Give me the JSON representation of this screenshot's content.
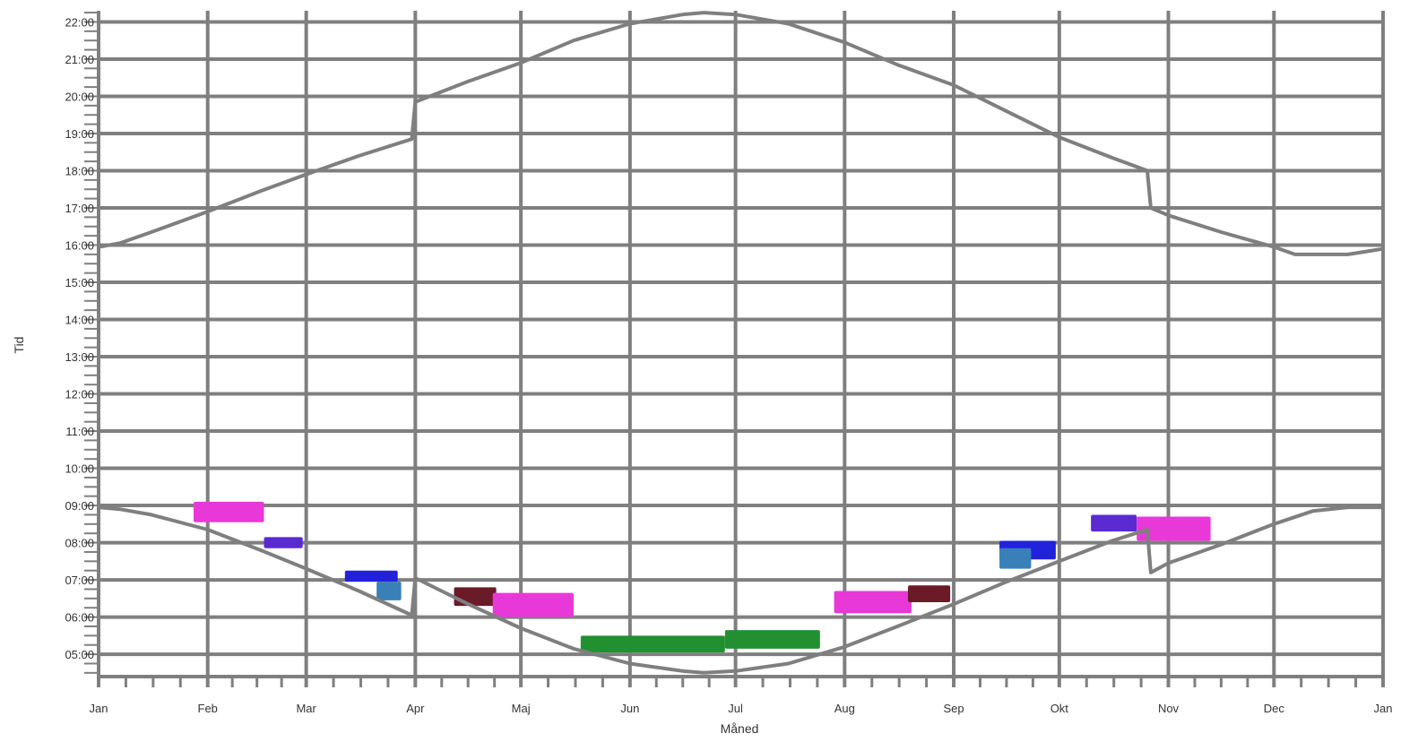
{
  "chart_data": {
    "type": "line",
    "title": "",
    "xlabel": "Måned",
    "ylabel": "Tid",
    "x_tick_labels": [
      "Jan",
      "Feb",
      "Mar",
      "Apr",
      "Maj",
      "Jun",
      "Jul",
      "Aug",
      "Sep",
      "Okt",
      "Nov",
      "Dec",
      "Jan"
    ],
    "y_tick_labels": [
      "05:00",
      "06:00",
      "07:00",
      "08:00",
      "09:00",
      "10:00",
      "11:00",
      "12:00",
      "13:00",
      "14:00",
      "15:00",
      "16:00",
      "17:00",
      "18:00",
      "19:00",
      "20:00",
      "21:00",
      "22:00"
    ],
    "ylim": [
      4.4,
      22.3
    ],
    "xlim": [
      0,
      365
    ],
    "grid": true,
    "colors": {
      "grid": "#7f7f7f",
      "line": "#7f7f7f",
      "axis_text": "#333333"
    },
    "series": [
      {
        "kind": "line",
        "x": [
          0,
          6,
          15,
          31,
          46,
          59,
          74,
          89,
          90,
          105,
          120,
          135,
          151,
          166,
          172,
          181,
          196,
          212,
          227,
          243,
          258,
          273,
          288,
          298,
          299,
          304,
          319,
          334,
          340,
          355,
          365
        ],
        "y": [
          15.95,
          16.05,
          16.35,
          16.9,
          17.45,
          17.9,
          18.4,
          18.85,
          19.85,
          20.4,
          20.9,
          21.5,
          21.95,
          22.2,
          22.25,
          22.2,
          21.95,
          21.45,
          20.85,
          20.3,
          19.6,
          18.9,
          18.35,
          18.0,
          17.0,
          16.8,
          16.35,
          15.95,
          15.75,
          15.75,
          15.9
        ]
      },
      {
        "kind": "line",
        "x": [
          0,
          6,
          15,
          31,
          46,
          59,
          74,
          89,
          90,
          105,
          120,
          135,
          151,
          166,
          172,
          181,
          196,
          212,
          227,
          243,
          258,
          273,
          288,
          298,
          299,
          304,
          319,
          334,
          345,
          355,
          365
        ],
        "y": [
          8.95,
          8.9,
          8.75,
          8.35,
          7.8,
          7.3,
          6.7,
          6.05,
          7.05,
          6.35,
          5.7,
          5.15,
          4.75,
          4.55,
          4.5,
          4.55,
          4.75,
          5.2,
          5.75,
          6.35,
          6.95,
          7.5,
          8.05,
          8.35,
          7.2,
          7.45,
          7.95,
          8.5,
          8.85,
          8.95,
          8.95
        ]
      }
    ],
    "blocks": [
      {
        "color": "#e838d8",
        "x": [
          27,
          47
        ],
        "y": [
          8.55,
          9.1
        ]
      },
      {
        "color": "#5a2bd0",
        "x": [
          47,
          58
        ],
        "y": [
          7.85,
          8.15
        ]
      },
      {
        "color": "#2222dd",
        "x": [
          70,
          85
        ],
        "y": [
          6.95,
          7.25
        ]
      },
      {
        "color": "#3a80b8",
        "x": [
          79,
          86
        ],
        "y": [
          6.45,
          6.95
        ]
      },
      {
        "color": "#6b1a28",
        "x": [
          101,
          113
        ],
        "y": [
          6.3,
          6.8
        ]
      },
      {
        "color": "#e838d8",
        "x": [
          112,
          135
        ],
        "y": [
          6.0,
          6.65
        ]
      },
      {
        "color": "#229030",
        "x": [
          137,
          178
        ],
        "y": [
          5.05,
          5.5
        ]
      },
      {
        "color": "#229030",
        "x": [
          178,
          205
        ],
        "y": [
          5.15,
          5.65
        ]
      },
      {
        "color": "#e838d8",
        "x": [
          209,
          231
        ],
        "y": [
          6.1,
          6.7
        ]
      },
      {
        "color": "#6b1a28",
        "x": [
          230,
          242
        ],
        "y": [
          6.4,
          6.85
        ]
      },
      {
        "color": "#2222dd",
        "x": [
          256,
          272
        ],
        "y": [
          7.55,
          8.05
        ]
      },
      {
        "color": "#3a80b8",
        "x": [
          256,
          265
        ],
        "y": [
          7.3,
          7.85
        ]
      },
      {
        "color": "#5a2bd0",
        "x": [
          282,
          295
        ],
        "y": [
          8.3,
          8.75
        ]
      },
      {
        "color": "#e838d8",
        "x": [
          295,
          316
        ],
        "y": [
          8.05,
          8.7
        ]
      }
    ]
  }
}
